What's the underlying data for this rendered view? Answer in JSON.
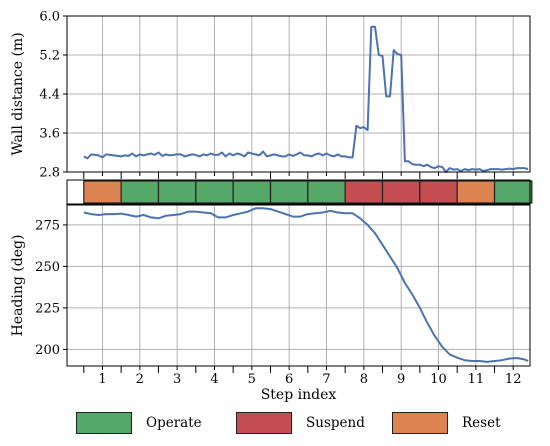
{
  "chart_data": [
    {
      "type": "line",
      "panel": "top",
      "ylabel": "Wall distance (m)",
      "ylim": [
        2.8,
        6.0
      ],
      "yticks": [
        "2.8",
        "3.6",
        "4.4",
        "5.2",
        "6.0"
      ],
      "grid": true,
      "series": [
        {
          "color": "#4c72b0",
          "x": [
            0.5,
            0.6,
            0.7,
            0.8,
            0.9,
            1.0,
            1.1,
            1.2,
            1.3,
            1.4,
            1.5,
            1.6,
            1.7,
            1.8,
            1.9,
            2.0,
            2.1,
            2.2,
            2.3,
            2.4,
            2.5,
            2.6,
            2.7,
            2.8,
            2.9,
            3.0,
            3.1,
            3.2,
            3.3,
            3.4,
            3.5,
            3.6,
            3.7,
            3.8,
            3.9,
            4.0,
            4.1,
            4.2,
            4.3,
            4.4,
            4.5,
            4.6,
            4.7,
            4.8,
            4.9,
            5.0,
            5.1,
            5.2,
            5.3,
            5.4,
            5.5,
            5.6,
            5.7,
            5.8,
            5.9,
            6.0,
            6.1,
            6.2,
            6.3,
            6.4,
            6.5,
            6.6,
            6.7,
            6.8,
            6.9,
            7.0,
            7.1,
            7.2,
            7.3,
            7.4,
            7.5,
            7.6,
            7.7,
            7.8,
            7.9,
            8.0,
            8.1,
            8.2,
            8.3,
            8.4,
            8.5,
            8.6,
            8.7,
            8.8,
            8.9,
            9.0,
            9.1,
            9.2,
            9.3,
            9.4,
            9.5,
            9.6,
            9.7,
            9.8,
            9.9,
            10.0,
            10.1,
            10.2,
            10.3,
            10.4,
            10.5,
            10.6,
            10.7,
            10.8,
            10.9,
            11.0,
            11.1,
            11.2,
            11.3,
            11.4,
            11.5,
            11.6,
            11.7,
            11.8,
            11.9,
            12.0,
            12.1,
            12.2,
            12.3,
            12.4
          ],
          "y": [
            3.12,
            3.08,
            3.16,
            3.15,
            3.14,
            3.1,
            3.16,
            3.15,
            3.14,
            3.13,
            3.12,
            3.14,
            3.13,
            3.18,
            3.12,
            3.16,
            3.14,
            3.16,
            3.18,
            3.15,
            3.2,
            3.13,
            3.16,
            3.14,
            3.15,
            3.16,
            3.16,
            3.12,
            3.14,
            3.16,
            3.15,
            3.12,
            3.16,
            3.14,
            3.18,
            3.15,
            3.15,
            3.2,
            3.12,
            3.18,
            3.14,
            3.18,
            3.16,
            3.12,
            3.2,
            3.18,
            3.16,
            3.14,
            3.22,
            3.12,
            3.14,
            3.16,
            3.14,
            3.12,
            3.12,
            3.16,
            3.13,
            3.16,
            3.2,
            3.14,
            3.14,
            3.12,
            3.16,
            3.18,
            3.14,
            3.18,
            3.14,
            3.12,
            3.16,
            3.12,
            3.12,
            3.1,
            3.1,
            3.75,
            3.7,
            3.72,
            3.66,
            5.78,
            5.78,
            5.2,
            5.18,
            4.35,
            4.35,
            5.3,
            5.22,
            5.2,
            3.02,
            3.02,
            2.96,
            2.95,
            2.95,
            2.92,
            2.95,
            2.9,
            2.88,
            2.92,
            2.9,
            2.8,
            2.88,
            2.85,
            2.86,
            2.82,
            2.86,
            2.84,
            2.86,
            2.85,
            2.86,
            2.82,
            2.84,
            2.86,
            2.86,
            2.86,
            2.85,
            2.86,
            2.87,
            2.86,
            2.88,
            2.88,
            2.88,
            2.86
          ]
        }
      ]
    },
    {
      "type": "timeline",
      "panel": "middle",
      "categories": [
        "1",
        "2",
        "3",
        "4",
        "5",
        "6",
        "7",
        "8",
        "9",
        "10",
        "11",
        "12"
      ],
      "states": [
        "Reset",
        "Operate",
        "Operate",
        "Operate",
        "Operate",
        "Operate",
        "Operate",
        "Suspend",
        "Suspend",
        "Suspend",
        "Reset",
        "Operate"
      ]
    },
    {
      "type": "line",
      "panel": "bottom",
      "xlabel": "Step index",
      "ylabel": "Heading (deg)",
      "ylim": [
        190,
        287
      ],
      "yticks": [
        "200",
        "225",
        "250",
        "275"
      ],
      "xticks": [
        "1",
        "2",
        "3",
        "4",
        "5",
        "6",
        "7",
        "8",
        "9",
        "10",
        "11",
        "12"
      ],
      "grid": true,
      "series": [
        {
          "color": "#4c72b0",
          "x": [
            0.5,
            0.7,
            0.9,
            1.1,
            1.3,
            1.5,
            1.7,
            1.9,
            2.1,
            2.3,
            2.5,
            2.7,
            2.9,
            3.1,
            3.3,
            3.5,
            3.7,
            3.9,
            4.1,
            4.3,
            4.5,
            4.7,
            4.9,
            5.1,
            5.3,
            5.5,
            5.7,
            5.9,
            6.1,
            6.3,
            6.5,
            6.7,
            6.9,
            7.1,
            7.3,
            7.5,
            7.7,
            7.9,
            8.1,
            8.3,
            8.5,
            8.7,
            8.9,
            9.1,
            9.3,
            9.5,
            9.7,
            9.9,
            10.1,
            10.3,
            10.5,
            10.7,
            10.9,
            11.1,
            11.3,
            11.5,
            11.7,
            11.9,
            12.1,
            12.3,
            12.4
          ],
          "y": [
            282.5,
            281.5,
            281.0,
            281.5,
            281.5,
            281.8,
            281.0,
            280.0,
            281.0,
            279.5,
            279.0,
            280.5,
            281.0,
            281.5,
            283.0,
            283.0,
            282.5,
            282.0,
            279.5,
            279.5,
            281.0,
            282.0,
            283.0,
            285.0,
            285.0,
            284.5,
            283.0,
            281.5,
            280.0,
            280.0,
            281.5,
            282.0,
            282.5,
            283.5,
            282.5,
            282.0,
            282.0,
            279.0,
            275.0,
            270.0,
            263.0,
            256.0,
            249.0,
            240.0,
            233.0,
            225.0,
            216.0,
            208.0,
            201.5,
            197.0,
            195.0,
            193.5,
            193.0,
            193.0,
            192.5,
            193.0,
            193.5,
            194.5,
            194.8,
            194.0,
            193.0
          ]
        }
      ]
    }
  ],
  "legend": [
    {
      "label": "Operate",
      "color": "#55a868"
    },
    {
      "label": "Suspend",
      "color": "#c44e52"
    },
    {
      "label": "Reset",
      "color": "#dd8452"
    }
  ],
  "state_colors": {
    "Operate": "#55a868",
    "Suspend": "#c44e52",
    "Reset": "#dd8452"
  }
}
